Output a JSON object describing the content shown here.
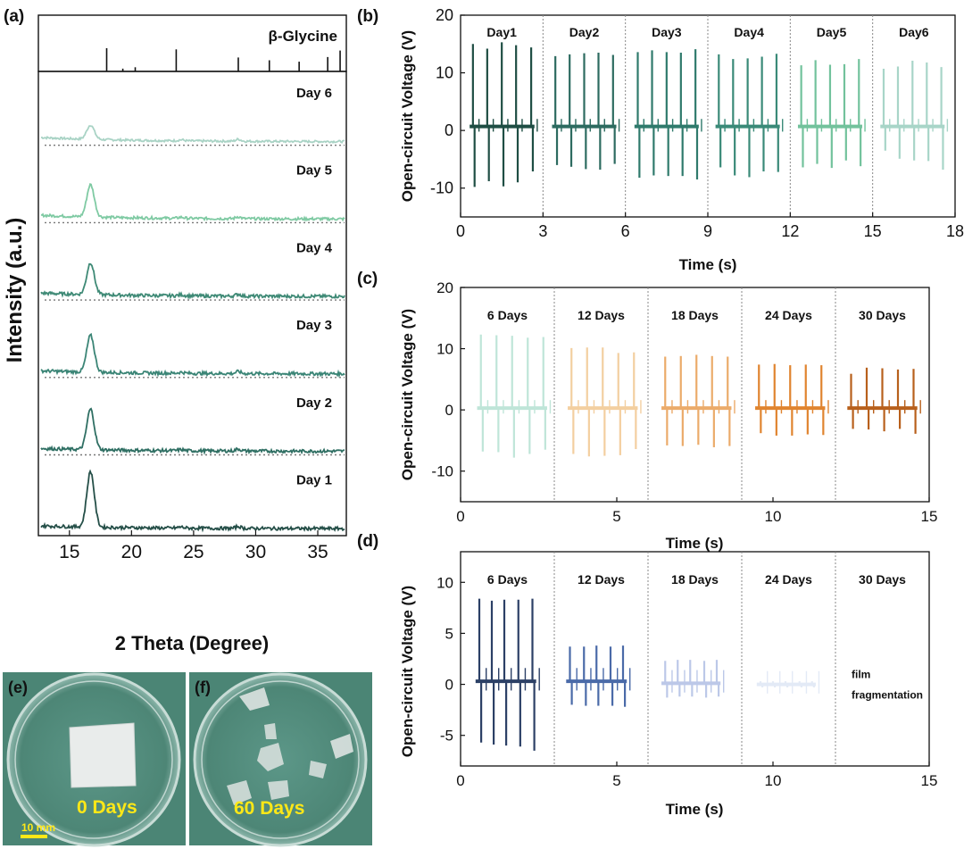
{
  "colors": {
    "b_days": [
      "#1f4e44",
      "#2d6b60",
      "#2f7a6c",
      "#3a8a78",
      "#72c29c",
      "#a8d5c8"
    ],
    "c_days": [
      "#bfe5d8",
      "#f3cfa0",
      "#ebab6a",
      "#e0842f",
      "#b8601c"
    ],
    "d_days": [
      "#2c4066",
      "#4a6aa8",
      "#bcc8e8",
      "#e3eaf6"
    ],
    "a_traces": [
      "#a9d3c5",
      "#7fcaa3",
      "#3f8a76",
      "#3b8576",
      "#2f6f63",
      "#254f48"
    ],
    "photo_bg": "#4e8a7a",
    "photo_label": "#ffe817"
  },
  "panels": {
    "a": {
      "label": "(a)"
    },
    "b": {
      "label": "(b)"
    },
    "c": {
      "label": "(c)"
    },
    "d": {
      "label": "(d)"
    },
    "e": {
      "label": "(e)",
      "day_text": "0 Days",
      "scale_text": "10 mm"
    },
    "f": {
      "label": "(f)",
      "day_text": "60 Days"
    }
  },
  "chart_data": [
    {
      "panel": "a",
      "type": "line",
      "title": "",
      "xlabel": "2 Theta (Degree)",
      "ylabel": "Intensity (a.u.)",
      "xlim": [
        12.5,
        37.3
      ],
      "xticks": [
        15,
        20,
        25,
        30,
        35
      ],
      "reference": {
        "name": "β-Glycine",
        "peaks": [
          {
            "x": 18.0,
            "h": 1.0
          },
          {
            "x": 19.3,
            "h": 0.12
          },
          {
            "x": 20.3,
            "h": 0.18
          },
          {
            "x": 23.6,
            "h": 0.95
          },
          {
            "x": 28.6,
            "h": 0.6
          },
          {
            "x": 31.1,
            "h": 0.48
          },
          {
            "x": 33.5,
            "h": 0.42
          },
          {
            "x": 35.8,
            "h": 0.62
          },
          {
            "x": 36.8,
            "h": 0.9
          }
        ]
      },
      "series": [
        {
          "name": "Day 6",
          "peak_x": 16.7,
          "peak_height": 0.38,
          "baseline_shift": 0.22,
          "noise": 0.04
        },
        {
          "name": "Day 5",
          "peak_x": 16.7,
          "peak_height": 0.86,
          "baseline_shift": 0.2,
          "noise": 0.05
        },
        {
          "name": "Day 4",
          "peak_x": 16.7,
          "peak_height": 0.85,
          "baseline_shift": 0.18,
          "noise": 0.06
        },
        {
          "name": "Day 3",
          "peak_x": 16.7,
          "peak_height": 0.98,
          "baseline_shift": 0.16,
          "noise": 0.06
        },
        {
          "name": "Day 2",
          "peak_x": 16.7,
          "peak_height": 1.08,
          "baseline_shift": 0.15,
          "noise": 0.06
        },
        {
          "name": "Day 1",
          "peak_x": 16.7,
          "peak_height": 1.48,
          "baseline_shift": 0.15,
          "noise": 0.06
        }
      ]
    },
    {
      "panel": "b",
      "type": "line",
      "title": "",
      "xlabel": "Time (s)",
      "ylabel": "Open-circuit Voltage (V)",
      "xlim": [
        0,
        18
      ],
      "ylim": [
        -15,
        20
      ],
      "xticks": [
        0,
        3,
        6,
        9,
        12,
        15,
        18
      ],
      "yticks": [
        -10,
        0,
        10,
        20
      ],
      "dividers": [
        3,
        6,
        9,
        12,
        15
      ],
      "segments": [
        {
          "name": "Day1",
          "baseline": 0.7,
          "pulses": [
            {
              "t": 0.45,
              "up": 15,
              "dn": -9.8
            },
            {
              "t": 0.97,
              "up": 14.2,
              "dn": -8.8
            },
            {
              "t": 1.5,
              "up": 15.3,
              "dn": -9.7
            },
            {
              "t": 2.02,
              "up": 14.8,
              "dn": -9
            },
            {
              "t": 2.57,
              "up": 14.4,
              "dn": -7.1
            }
          ]
        },
        {
          "name": "Day2",
          "baseline": 0.7,
          "pulses": [
            {
              "t": 3.45,
              "up": 12.9,
              "dn": -6
            },
            {
              "t": 3.97,
              "up": 13.2,
              "dn": -6.3
            },
            {
              "t": 4.5,
              "up": 13.4,
              "dn": -6.7
            },
            {
              "t": 5.02,
              "up": 13.5,
              "dn": -6.8
            },
            {
              "t": 5.55,
              "up": 13.1,
              "dn": -5.8
            }
          ]
        },
        {
          "name": "Day3",
          "baseline": 0.7,
          "pulses": [
            {
              "t": 6.45,
              "up": 13.6,
              "dn": -8.2
            },
            {
              "t": 6.97,
              "up": 13.9,
              "dn": -7.8
            },
            {
              "t": 7.5,
              "up": 13.6,
              "dn": -7.9
            },
            {
              "t": 8.02,
              "up": 13.5,
              "dn": -7.9
            },
            {
              "t": 8.55,
              "up": 14.1,
              "dn": -8.5
            }
          ]
        },
        {
          "name": "Day4",
          "baseline": 0.7,
          "pulses": [
            {
              "t": 9.4,
              "up": 13.2,
              "dn": -6.4
            },
            {
              "t": 9.92,
              "up": 12.4,
              "dn": -7.8
            },
            {
              "t": 10.45,
              "up": 12.5,
              "dn": -8.1
            },
            {
              "t": 10.97,
              "up": 12.8,
              "dn": -7.1
            },
            {
              "t": 11.5,
              "up": 13.3,
              "dn": -7.2
            }
          ]
        },
        {
          "name": "Day5",
          "baseline": 0.7,
          "pulses": [
            {
              "t": 12.4,
              "up": 11.3,
              "dn": -6.4
            },
            {
              "t": 12.92,
              "up": 12.2,
              "dn": -5.8
            },
            {
              "t": 13.45,
              "up": 11.4,
              "dn": -6.5
            },
            {
              "t": 13.97,
              "up": 11.5,
              "dn": -5.2
            },
            {
              "t": 14.5,
              "up": 12.4,
              "dn": -6.2
            }
          ]
        },
        {
          "name": "Day6",
          "baseline": 0.7,
          "pulses": [
            {
              "t": 15.4,
              "up": 10.7,
              "dn": -3.5
            },
            {
              "t": 15.92,
              "up": 11.1,
              "dn": -4.9
            },
            {
              "t": 16.45,
              "up": 12.1,
              "dn": -5.2
            },
            {
              "t": 16.97,
              "up": 11.8,
              "dn": -5.3
            },
            {
              "t": 17.5,
              "up": 11,
              "dn": -6.8
            }
          ]
        }
      ]
    },
    {
      "panel": "c",
      "type": "line",
      "title": "",
      "xlabel": "Time (s)",
      "ylabel": "Open-circuit Voltage (V)",
      "xlim": [
        0,
        15
      ],
      "ylim": [
        -15,
        20
      ],
      "xticks": [
        0,
        5,
        10,
        15
      ],
      "yticks": [
        -10,
        0,
        10,
        20
      ],
      "dividers": [
        3,
        6,
        9,
        12
      ],
      "segments": [
        {
          "name": "6 Days",
          "baseline": 0.3,
          "pulses": [
            {
              "t": 0.65,
              "up": 12.3,
              "dn": -6.8
            },
            {
              "t": 1.15,
              "up": 12.2,
              "dn": -6.9
            },
            {
              "t": 1.65,
              "up": 12.1,
              "dn": -7.8
            },
            {
              "t": 2.15,
              "up": 11.8,
              "dn": -7.2
            },
            {
              "t": 2.65,
              "up": 11.9,
              "dn": -6.5
            }
          ]
        },
        {
          "name": "12 Days",
          "baseline": 0.3,
          "pulses": [
            {
              "t": 3.55,
              "up": 10.1,
              "dn": -7.2
            },
            {
              "t": 4.05,
              "up": 10.2,
              "dn": -7.6
            },
            {
              "t": 4.55,
              "up": 10.2,
              "dn": -7.5
            },
            {
              "t": 5.05,
              "up": 9.3,
              "dn": -7.4
            },
            {
              "t": 5.55,
              "up": 9.4,
              "dn": -6.4
            }
          ]
        },
        {
          "name": "18 Days",
          "baseline": 0.3,
          "pulses": [
            {
              "t": 6.55,
              "up": 8.7,
              "dn": -5.8
            },
            {
              "t": 7.05,
              "up": 8.8,
              "dn": -5.9
            },
            {
              "t": 7.55,
              "up": 9,
              "dn": -5.7
            },
            {
              "t": 8.05,
              "up": 8.8,
              "dn": -6.1
            },
            {
              "t": 8.55,
              "up": 8.7,
              "dn": -5.9
            }
          ]
        },
        {
          "name": "24 Days",
          "baseline": 0.3,
          "pulses": [
            {
              "t": 9.55,
              "up": 7.4,
              "dn": -3.8
            },
            {
              "t": 10.05,
              "up": 7.5,
              "dn": -4.2
            },
            {
              "t": 10.55,
              "up": 7.3,
              "dn": -4.2
            },
            {
              "t": 11.05,
              "up": 7.4,
              "dn": -4
            },
            {
              "t": 11.55,
              "up": 7.3,
              "dn": -4.1
            }
          ]
        },
        {
          "name": "30 Days",
          "baseline": 0.3,
          "pulses": [
            {
              "t": 12.5,
              "up": 5.9,
              "dn": -3.1
            },
            {
              "t": 13,
              "up": 6.9,
              "dn": -3.2
            },
            {
              "t": 13.5,
              "up": 6.8,
              "dn": -3.5
            },
            {
              "t": 14,
              "up": 6.6,
              "dn": -3.1
            },
            {
              "t": 14.5,
              "up": 6.7,
              "dn": -3.9
            }
          ]
        }
      ]
    },
    {
      "panel": "d",
      "type": "line",
      "title": "",
      "xlabel": "Time (s)",
      "ylabel": "Open-circuit Voltage (V)",
      "xlim": [
        0,
        15
      ],
      "ylim": [
        -8,
        13
      ],
      "xticks": [
        0,
        5,
        10,
        15
      ],
      "yticks": [
        -5,
        0,
        5,
        10
      ],
      "dividers": [
        3,
        6,
        9,
        12
      ],
      "segments": [
        {
          "name": "6 Days",
          "baseline": 0.3,
          "pulses": [
            {
              "t": 0.6,
              "up": 8.4,
              "dn": -5.7
            },
            {
              "t": 1,
              "up": 8.2,
              "dn": -5.9
            },
            {
              "t": 1.4,
              "up": 8.3,
              "dn": -6
            },
            {
              "t": 1.85,
              "up": 8.3,
              "dn": -6.1
            },
            {
              "t": 2.3,
              "up": 8.4,
              "dn": -6.5
            }
          ]
        },
        {
          "name": "12 Days",
          "baseline": 0.3,
          "pulses": [
            {
              "t": 3.5,
              "up": 3.7,
              "dn": -2
            },
            {
              "t": 3.95,
              "up": 3.7,
              "dn": -2.1
            },
            {
              "t": 4.35,
              "up": 3.8,
              "dn": -2.1
            },
            {
              "t": 4.8,
              "up": 3.7,
              "dn": -2.1
            },
            {
              "t": 5.2,
              "up": 3.8,
              "dn": -2.2
            }
          ]
        },
        {
          "name": "18 Days",
          "baseline": 0.1,
          "pulses": [
            {
              "t": 6.55,
              "up": 2.3,
              "dn": -1.3
            },
            {
              "t": 6.95,
              "up": 2.4,
              "dn": -1.2
            },
            {
              "t": 7.35,
              "up": 2.4,
              "dn": -1.2
            },
            {
              "t": 7.8,
              "up": 2.3,
              "dn": -1.3
            },
            {
              "t": 8.2,
              "up": 2.4,
              "dn": -1.2
            }
          ]
        },
        {
          "name": "24 Days",
          "baseline": 0,
          "pulses": [
            {
              "t": 9.6,
              "up": 0.3,
              "dn": -0.3
            },
            {
              "t": 10,
              "up": 0.3,
              "dn": -0.3
            },
            {
              "t": 10.4,
              "up": 0.3,
              "dn": -0.3
            },
            {
              "t": 10.85,
              "up": 0.3,
              "dn": -0.3
            },
            {
              "t": 11.25,
              "up": 0.3,
              "dn": -0.3
            }
          ]
        },
        {
          "name": "30 Days",
          "baseline": null,
          "pulses": [],
          "note_lines": [
            "film",
            "fragmentation"
          ]
        }
      ]
    }
  ]
}
